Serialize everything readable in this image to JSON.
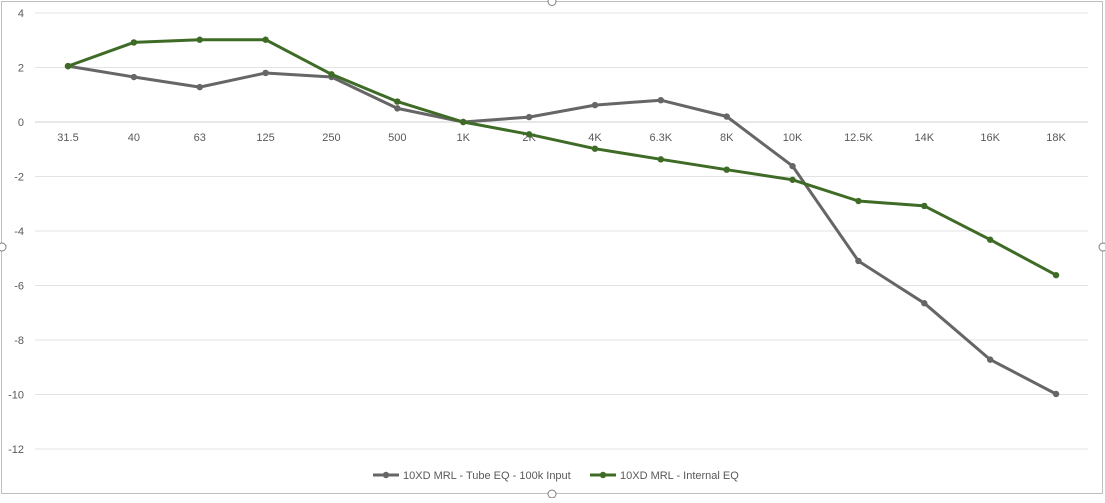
{
  "chart_data": {
    "type": "line",
    "title": "",
    "xlabel": "",
    "ylabel": "",
    "categories": [
      "31.5",
      "40",
      "63",
      "125",
      "250",
      "500",
      "1K",
      "2K",
      "4K",
      "6.3K",
      "8K",
      "10K",
      "12.5K",
      "14K",
      "16K",
      "18K"
    ],
    "ylim": [
      -12,
      4
    ],
    "yticks": [
      4,
      2,
      0,
      -2,
      -4,
      -6,
      -8,
      -10,
      -12
    ],
    "grid": true,
    "legend_position": "bottom",
    "series": [
      {
        "name": "10XD MRL - Tube EQ - 100k Input",
        "color": "#666666",
        "values": [
          2.05,
          1.65,
          1.28,
          1.8,
          1.65,
          0.5,
          0.0,
          0.18,
          0.62,
          0.8,
          0.2,
          -1.62,
          -5.1,
          -6.65,
          -8.72,
          -9.98
        ]
      },
      {
        "name": "10XD MRL - Internal EQ",
        "color": "#3e6b25",
        "values": [
          2.05,
          2.92,
          3.02,
          3.02,
          1.75,
          0.75,
          0.0,
          -0.45,
          -0.98,
          -1.37,
          -1.75,
          -2.12,
          -2.9,
          -3.08,
          -4.32,
          -5.62
        ]
      }
    ]
  }
}
